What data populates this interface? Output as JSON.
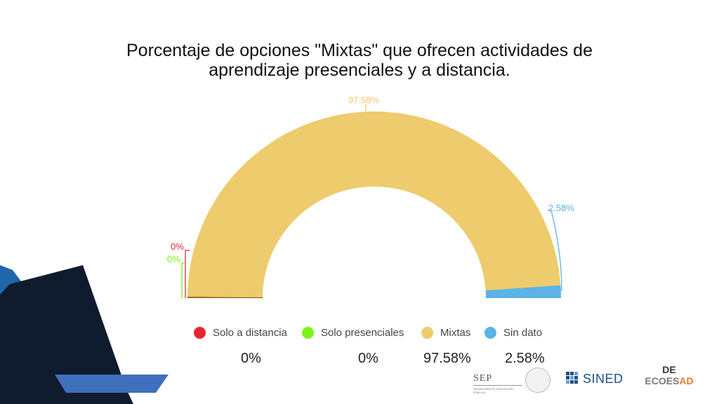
{
  "title": {
    "line1": "Porcentaje de opciones  \"Mixtas\" que ofrecen actividades de",
    "line2": "aprendizaje  presenciales y a distancia."
  },
  "chart_data": {
    "type": "pie",
    "style": "semi-donut",
    "title": "Porcentaje de opciones  \"Mixtas\" que ofrecen actividades de aprendizaje  presenciales y a distancia.",
    "categories": [
      "Solo a distancia",
      "Solo presenciales",
      "Mixtas",
      "Sin dato"
    ],
    "values": [
      0,
      0,
      97.58,
      2.58
    ],
    "labels": [
      "0%",
      "0%",
      "97.58%",
      "2.58%"
    ],
    "colors": [
      "#e8262f",
      "#7cf21b",
      "#eecb6c",
      "#5bb4e5"
    ],
    "legend_position": "bottom"
  },
  "value_row": [
    "0%",
    "0%",
    "97.58%",
    "2.58%"
  ],
  "logos": {
    "sep": "SEP",
    "sep_sub": "SECRETARÍA DE EDUCACIÓN PÚBLICA",
    "sined": "SINED",
    "ecoesad_mark": "DE",
    "ecoesad_main": "ECOES",
    "ecoesad_accent": "AD"
  }
}
